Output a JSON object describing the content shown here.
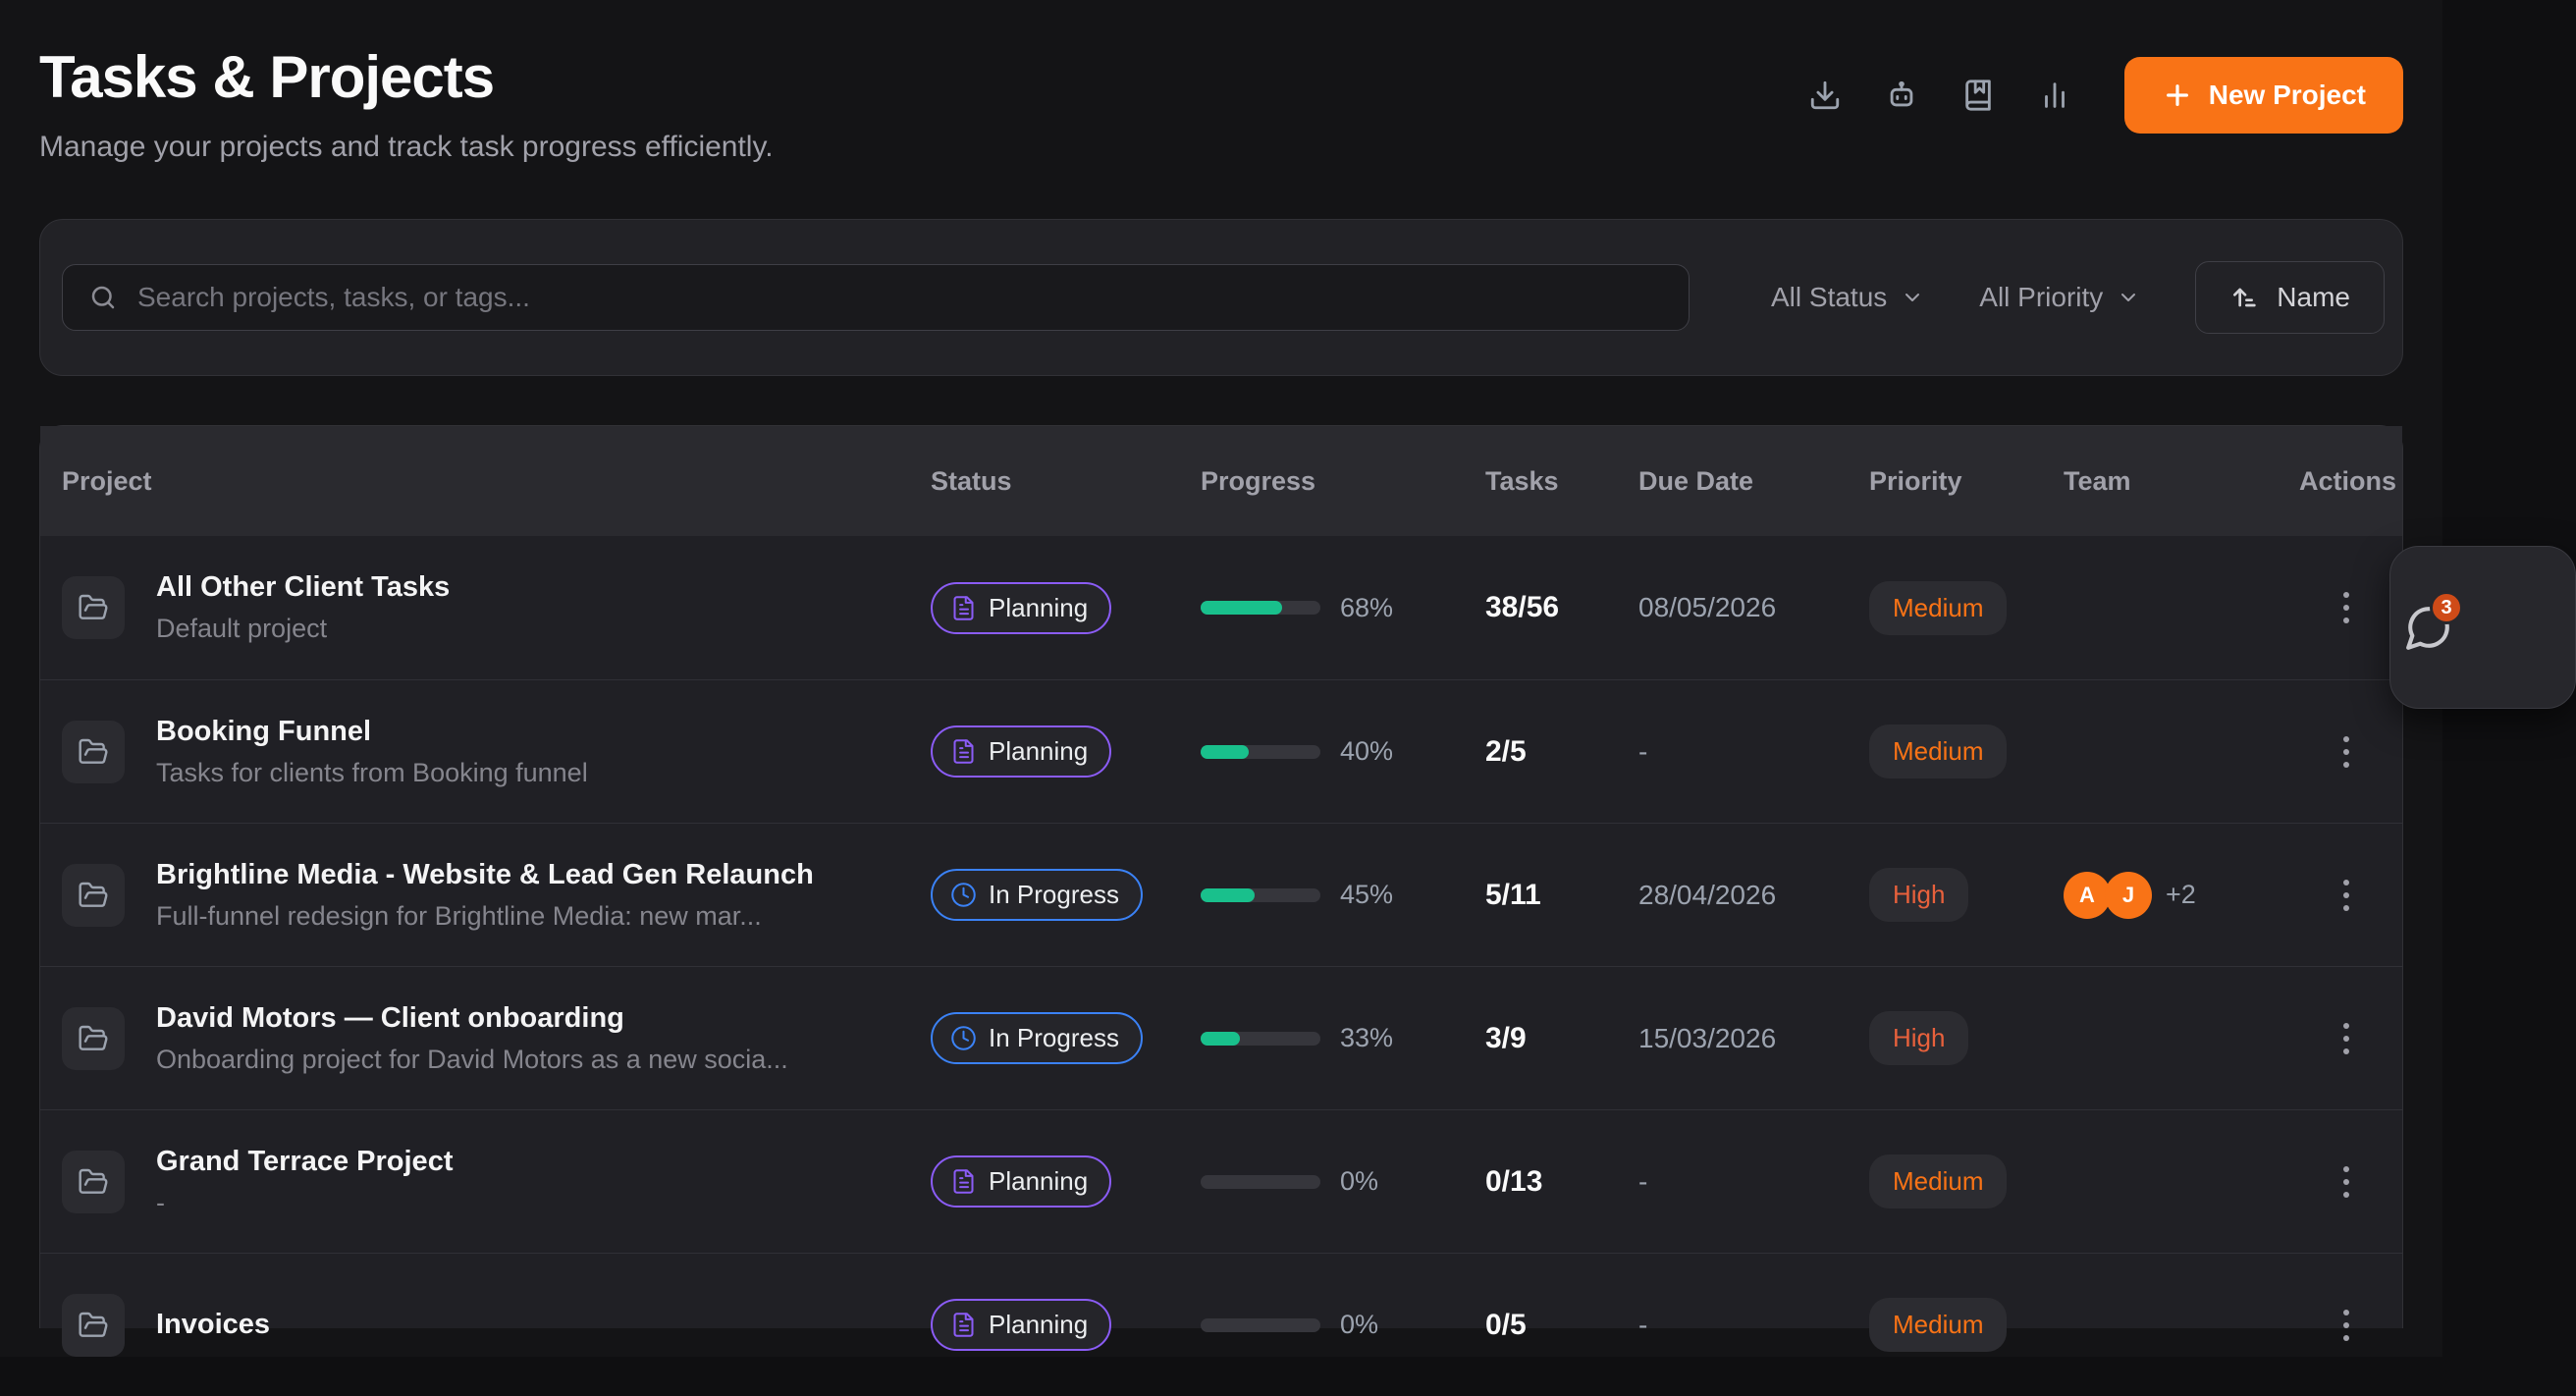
{
  "header": {
    "title": "Tasks & Projects",
    "subtitle": "Manage your projects and track task progress efficiently.",
    "icon_buttons": [
      "download-icon",
      "robot-icon",
      "book-marked-icon",
      "bar-chart-icon"
    ],
    "new_project_label": "New Project"
  },
  "filters": {
    "search_placeholder": "Search projects, tasks, or tags...",
    "status_filter": "All Status",
    "priority_filter": "All Priority",
    "sort_label": "Name"
  },
  "table": {
    "columns": [
      "Project",
      "Status",
      "Progress",
      "Tasks",
      "Due Date",
      "Priority",
      "Team",
      "Actions"
    ],
    "rows": [
      {
        "name": "All Other Client Tasks",
        "description": "Default project",
        "status": "Planning",
        "progress_pct": 68,
        "progress_label": "68%",
        "tasks": "38/56",
        "due_date": "08/05/2026",
        "priority": "Medium",
        "team": null
      },
      {
        "name": "Booking Funnel",
        "description": "Tasks for clients from Booking funnel",
        "status": "Planning",
        "progress_pct": 40,
        "progress_label": "40%",
        "tasks": "2/5",
        "due_date": "-",
        "priority": "Medium",
        "team": null
      },
      {
        "name": "Brightline Media - Website & Lead Gen Relaunch",
        "description": "Full-funnel redesign for Brightline Media: new mar...",
        "status": "In Progress",
        "progress_pct": 45,
        "progress_label": "45%",
        "tasks": "5/11",
        "due_date": "28/04/2026",
        "priority": "High",
        "team": {
          "avatars": [
            "A",
            "J"
          ],
          "extra": "+2"
        }
      },
      {
        "name": "David Motors — Client onboarding",
        "description": "Onboarding project for David Motors as a new socia...",
        "status": "In Progress",
        "progress_pct": 33,
        "progress_label": "33%",
        "tasks": "3/9",
        "due_date": "15/03/2026",
        "priority": "High",
        "team": null
      },
      {
        "name": "Grand Terrace Project",
        "description": "-",
        "status": "Planning",
        "progress_pct": 0,
        "progress_label": "0%",
        "tasks": "0/13",
        "due_date": "-",
        "priority": "Medium",
        "team": null
      },
      {
        "name": "Invoices",
        "description": "",
        "status": "Planning",
        "progress_pct": 0,
        "progress_label": "0%",
        "tasks": "0/5",
        "due_date": "-",
        "priority": "Medium",
        "team": null
      }
    ]
  },
  "chat_widget": {
    "badge_count": "3"
  },
  "colors": {
    "accent": "#f97316",
    "planning": "#8b5cf6",
    "in_progress": "#3b82f6",
    "progress_fill": "#19c08c",
    "priority_medium": "#f97316",
    "priority_high": "#e8613c",
    "chat_badge": "#cf4b18"
  }
}
